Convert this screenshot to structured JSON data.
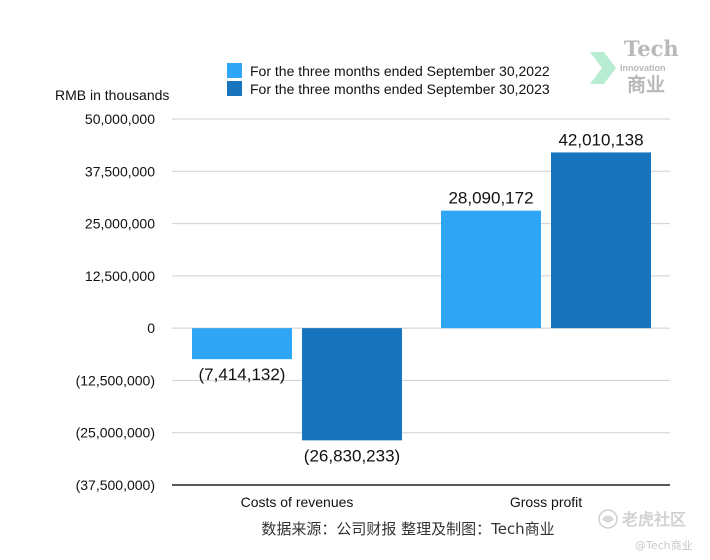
{
  "chart_data": {
    "type": "bar",
    "categories": [
      "Costs of revenues",
      "Gross profit"
    ],
    "series": [
      {
        "name": "For the three months ended September 30,2022",
        "values": [
          -7414132,
          28090172
        ],
        "labels": [
          "(7,414,132)",
          "28,090,172"
        ],
        "color": "#2ea6f5"
      },
      {
        "name": "For the three months ended September 30,2023",
        "values": [
          -26830233,
          42010138
        ],
        "labels": [
          "(26,830,233)",
          "42,010,138"
        ],
        "color": "#1774bd"
      }
    ],
    "ylabel": "RMB in thousands",
    "ylim": [
      -37500000,
      50000000
    ],
    "yticks": [
      50000000,
      37500000,
      25000000,
      12500000,
      0,
      -12500000,
      -25000000,
      -37500000
    ],
    "ytick_labels": [
      "50,000,000",
      "37,500,000",
      "25,000,000",
      "12,500,000",
      "0",
      "(12,500,000)",
      "(25,000,000)",
      "(37,500,000)"
    ],
    "grid": true,
    "legend_position": "top-center"
  },
  "source_note": "数据来源：公司财报 整理及制图：Tech商业",
  "logo": {
    "line1": "Tech",
    "line2": "Innovation",
    "line3": "商业"
  },
  "watermark": {
    "main": "老虎社区",
    "handle": "@Tech商业"
  },
  "colors": {
    "grid": "#cfcfcf",
    "baseline": "#222222",
    "logo_green": "#b6ecd2"
  }
}
